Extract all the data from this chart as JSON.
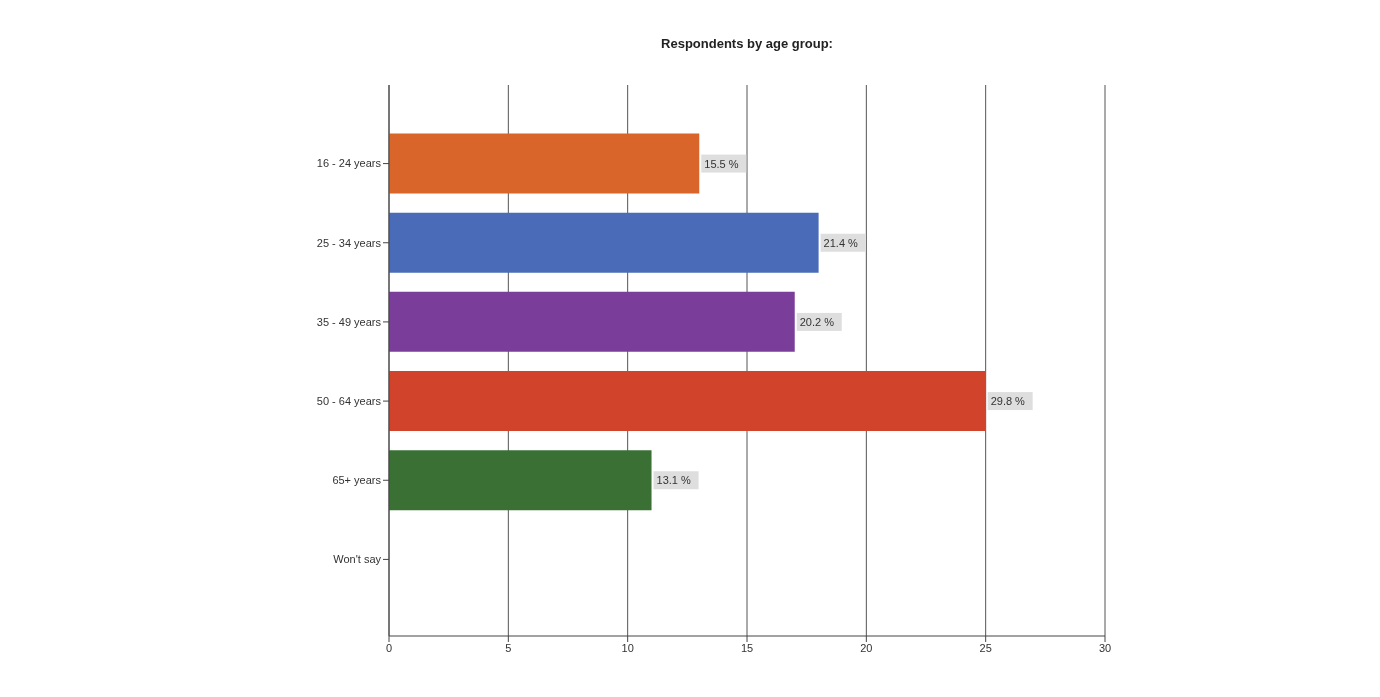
{
  "chart_data": {
    "type": "bar",
    "orientation": "horizontal",
    "title": "Respondents by age group:",
    "categories": [
      "16 - 24 years",
      "25 - 34 years",
      "35 - 49 years",
      "50 - 64 years",
      "65+ years",
      "Won't say"
    ],
    "values": [
      13,
      18,
      17,
      25,
      11,
      0
    ],
    "colors": [
      "#d9652a",
      "#4a6cb8",
      "#7b3d9a",
      "#d2432c",
      "#3a7033",
      "#888888"
    ],
    "annotations": [
      {
        "text": "15.5 %",
        "x": 13,
        "y": "16 - 24 years"
      },
      {
        "text": "21.4 %",
        "x": 18,
        "y": "25 - 34 years"
      },
      {
        "text": "20.2 %",
        "x": 17,
        "y": "35 - 49 years"
      },
      {
        "text": "29.8 %",
        "x": 25,
        "y": "50 - 64 years"
      },
      {
        "text": "13.1 %",
        "x": 11,
        "y": "65+ years"
      }
    ],
    "xlim": [
      0,
      30
    ],
    "xticks": [
      0,
      5,
      10,
      15,
      20,
      25,
      30
    ],
    "grid": "x"
  }
}
